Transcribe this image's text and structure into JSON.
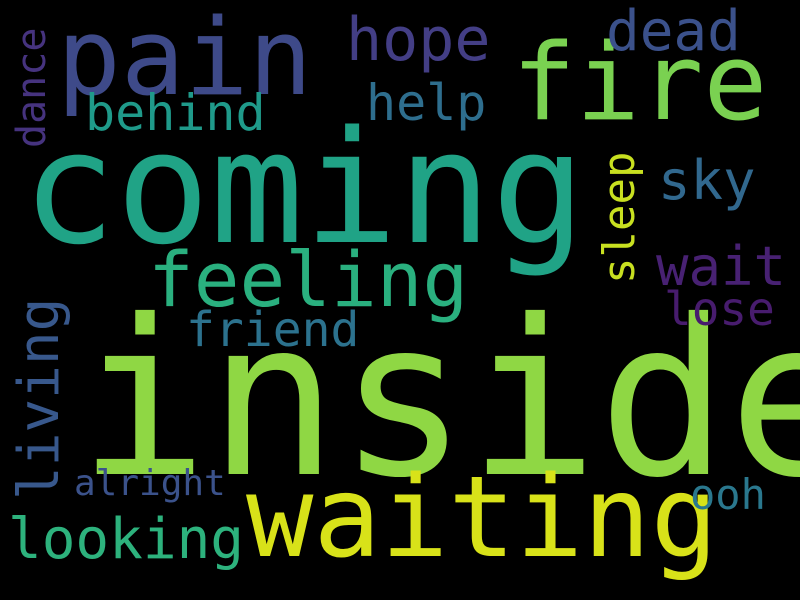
{
  "words": {
    "inside": {
      "text": "inside",
      "color": "#8fd744"
    },
    "coming": {
      "text": "coming",
      "color": "#20a386"
    },
    "waiting": {
      "text": "waiting",
      "color": "#d8e219"
    },
    "pain": {
      "text": "pain",
      "color": "#3e4a89"
    },
    "fire": {
      "text": "fire",
      "color": "#7ad151"
    },
    "feeling": {
      "text": "feeling",
      "color": "#2ab07f"
    },
    "hope": {
      "text": "hope",
      "color": "#433e85"
    },
    "dead": {
      "text": "dead",
      "color": "#3b518b"
    },
    "behind": {
      "text": "behind",
      "color": "#1f9a8a"
    },
    "help": {
      "text": "help",
      "color": "#2e6e8e"
    },
    "sky": {
      "text": "sky",
      "color": "#31688e"
    },
    "wait": {
      "text": "wait",
      "color": "#482173"
    },
    "lose": {
      "text": "lose",
      "color": "#481c6e"
    },
    "friend": {
      "text": "friend",
      "color": "#2c728e"
    },
    "looking": {
      "text": "looking",
      "color": "#2db27d"
    },
    "alright": {
      "text": "alright",
      "color": "#3b528b"
    },
    "ooh": {
      "text": "ooh",
      "color": "#2a788e"
    },
    "dance": {
      "text": "dance",
      "color": "#46337f"
    },
    "sleep": {
      "text": "sleep",
      "color": "#c8e020"
    },
    "living": {
      "text": "living",
      "color": "#38588c"
    }
  }
}
